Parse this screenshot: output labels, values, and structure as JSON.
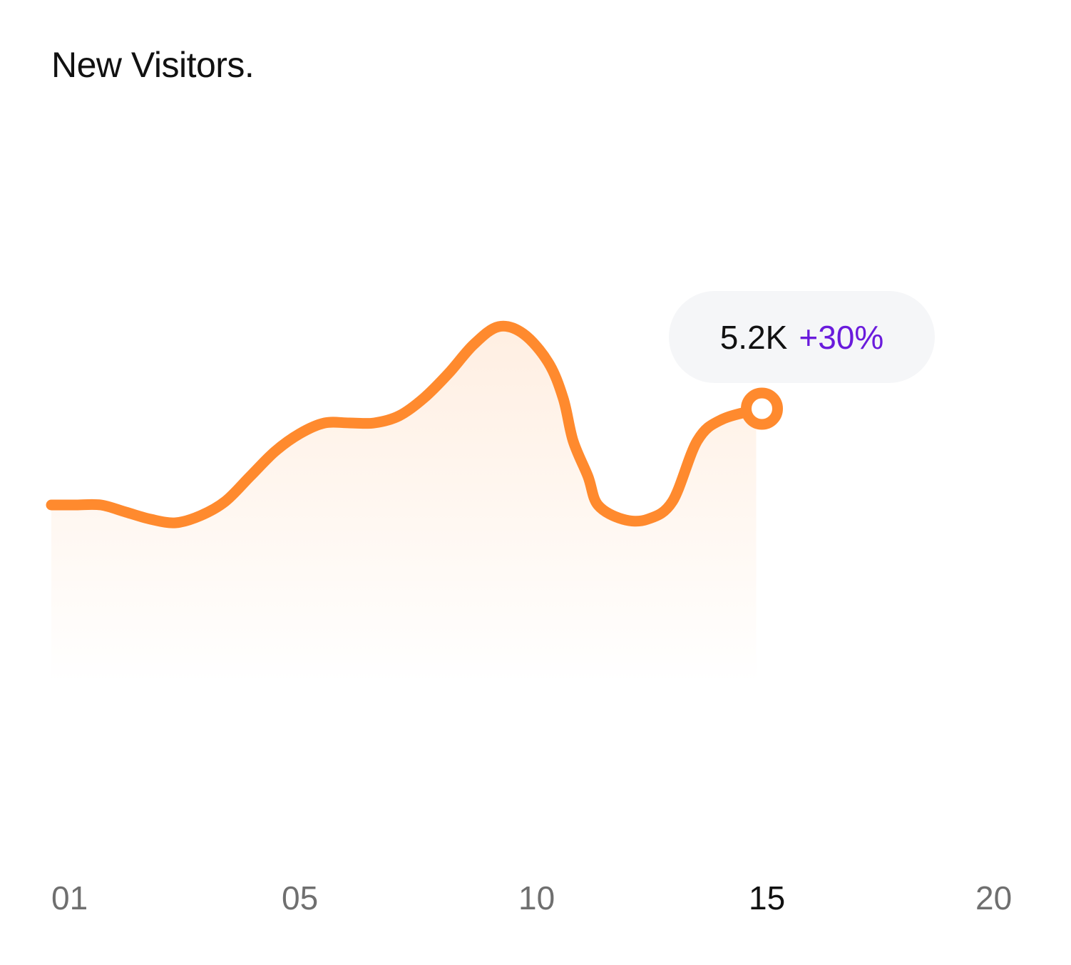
{
  "title": "New Visitors.",
  "colors": {
    "line": "#FF8A2E",
    "tooltip_bg": "#F5F6F8",
    "change": "#6A1BDC",
    "tick": "#6F6F6F",
    "tick_active": "#111111"
  },
  "tooltip": {
    "value": "5.2K",
    "change": "+30%"
  },
  "chart_data": {
    "type": "area",
    "title": "New Visitors.",
    "xlabel": "",
    "ylabel": "",
    "xlim": [
      1,
      20
    ],
    "ylim": [
      0,
      10
    ],
    "grid": false,
    "legend": "none",
    "x_ticks": [
      "01",
      "05",
      "10",
      "15",
      "20"
    ],
    "active_tick": "15",
    "x": [
      1,
      1.5,
      2,
      2.5,
      3,
      3.5,
      4,
      4.5,
      5,
      5.5,
      6,
      6.5,
      7,
      7.5,
      8,
      8.5,
      9,
      9.5,
      10,
      10.5,
      11,
      11.3,
      11.5,
      11.8,
      12,
      12.5,
      13,
      13.5,
      14,
      14.5,
      15.3
    ],
    "series": [
      {
        "values": [
          5.0,
          5.0,
          5.0,
          4.8,
          4.6,
          4.5,
          4.7,
          5.1,
          5.8,
          6.5,
          7.0,
          7.3,
          7.3,
          7.3,
          7.5,
          8.0,
          8.7,
          9.5,
          10.0,
          9.8,
          9.0,
          8.0,
          6.8,
          5.8,
          5.0,
          4.6,
          4.6,
          5.1,
          6.8,
          7.4,
          7.7
        ]
      }
    ],
    "highlight": {
      "x": 15.3,
      "value": "5.2K",
      "change": "+30%"
    }
  }
}
